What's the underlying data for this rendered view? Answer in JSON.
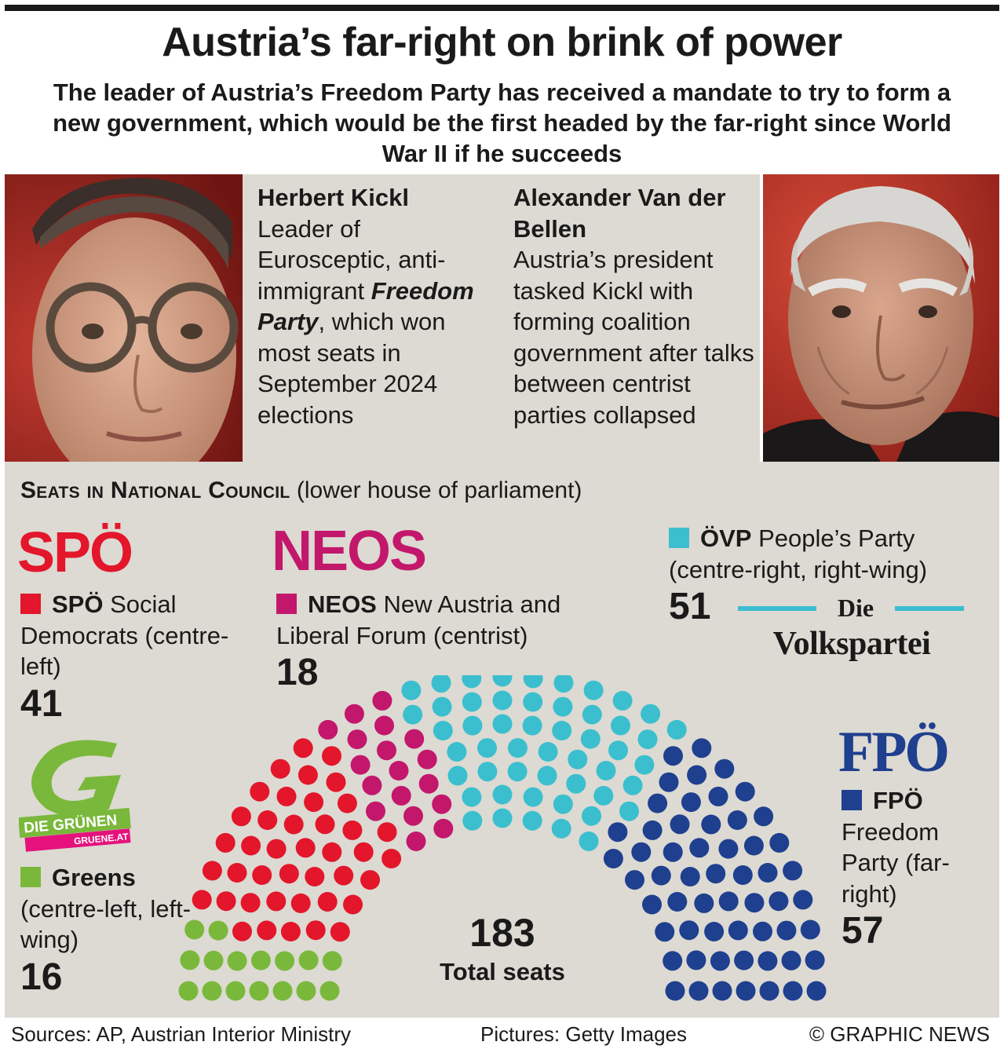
{
  "title": "Austria’s far-right on brink of power",
  "subtitle": "The leader of Austria’s Freedom Party has received a mandate to try to form a new government, which would be the first headed by the far-right since World War II if he succeeds",
  "kickl": {
    "name": "Herbert Kickl",
    "desc_1": "Leader of Eurosceptic, anti-immigrant",
    "desc_emph": "Freedom Party",
    "desc_2": ", which won most seats in September 2024 elections"
  },
  "vdb": {
    "name": "Alexander Van der Bellen",
    "desc": "Austria’s president tasked Kickl with forming coalition government after talks between centrist parties collapsed"
  },
  "seats_heading": {
    "bold": "Seats in National Council",
    "rest": "(lower house of parliament)"
  },
  "logos": {
    "spo": "SPÖ",
    "neos": "NEOS",
    "fpo": "FPÖ",
    "volks_die": "Die",
    "volks_name": "Volkspartei",
    "greens_name": "DIE GRÜNEN",
    "greens_url": "GRUENE.AT"
  },
  "parties": {
    "spo": {
      "abbr": "SPÖ",
      "desc": "Social Democrats (centre-left)",
      "seats_label": "41"
    },
    "neos": {
      "abbr": "NEOS",
      "desc": "New Austria and Liberal Forum (centrist)",
      "seats_label": "18"
    },
    "ovp": {
      "abbr": "ÖVP",
      "desc": "People’s Party (centre-right, right-wing)",
      "seats_label": "51"
    },
    "greens": {
      "abbr": "Greens",
      "desc": "(centre-left, left-wing)",
      "seats_label": "16"
    },
    "fpo": {
      "abbr": "FPÖ",
      "desc": "Freedom Party (far-right)",
      "seats_label": "57"
    }
  },
  "total": {
    "number": "183",
    "label": "Total seats"
  },
  "footer": {
    "sources": "Sources: AP, Austrian Interior Ministry",
    "pictures": "Pictures: Getty Images",
    "credit": "© GRAPHIC NEWS"
  },
  "chart_data": {
    "type": "parliament",
    "title": "Seats in National Council",
    "total": 183,
    "series": [
      {
        "name": "Greens",
        "values": [
          16
        ],
        "color": "#7ab83b"
      },
      {
        "name": "SPÖ",
        "values": [
          41
        ],
        "color": "#e3162b"
      },
      {
        "name": "NEOS",
        "values": [
          18
        ],
        "color": "#c3176c"
      },
      {
        "name": "ÖVP",
        "values": [
          51
        ],
        "color": "#3bbfcf"
      },
      {
        "name": "FPÖ",
        "values": [
          57
        ],
        "color": "#1f3f8f"
      }
    ]
  }
}
